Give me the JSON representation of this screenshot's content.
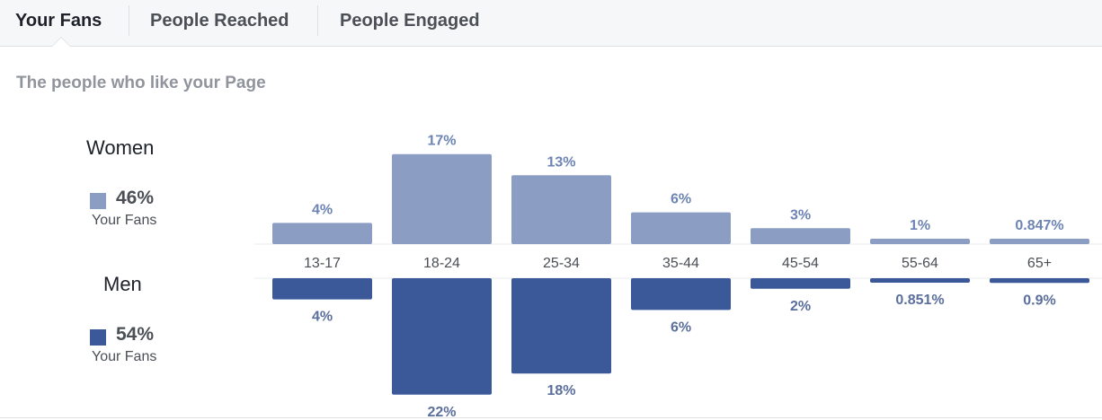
{
  "tabs": [
    {
      "label": "Your Fans",
      "active": true
    },
    {
      "label": "People Reached",
      "active": false
    },
    {
      "label": "People Engaged",
      "active": false
    }
  ],
  "subtitle": "The people who like your Page",
  "legend": {
    "women": {
      "title": "Women",
      "pct": "46%",
      "label": "Your Fans",
      "color": "#8b9dc3"
    },
    "men": {
      "title": "Men",
      "pct": "54%",
      "label": "Your Fans",
      "color": "#3b5998"
    }
  },
  "chart_data": {
    "type": "bar",
    "categories": [
      "13-17",
      "18-24",
      "25-34",
      "35-44",
      "45-54",
      "55-64",
      "65+"
    ],
    "series": [
      {
        "name": "Women",
        "values": [
          4,
          17,
          13,
          6,
          3,
          1,
          0.847
        ],
        "labels": [
          "4%",
          "17%",
          "13%",
          "6%",
          "3%",
          "1%",
          "0.847%"
        ]
      },
      {
        "name": "Men",
        "values": [
          4,
          22,
          18,
          6,
          2,
          0.851,
          0.9
        ],
        "labels": [
          "4%",
          "22%",
          "18%",
          "6%",
          "2%",
          "0.851%",
          "0.9%"
        ]
      }
    ],
    "colors": {
      "women": "#8b9dc3",
      "men": "#3b5998"
    }
  }
}
